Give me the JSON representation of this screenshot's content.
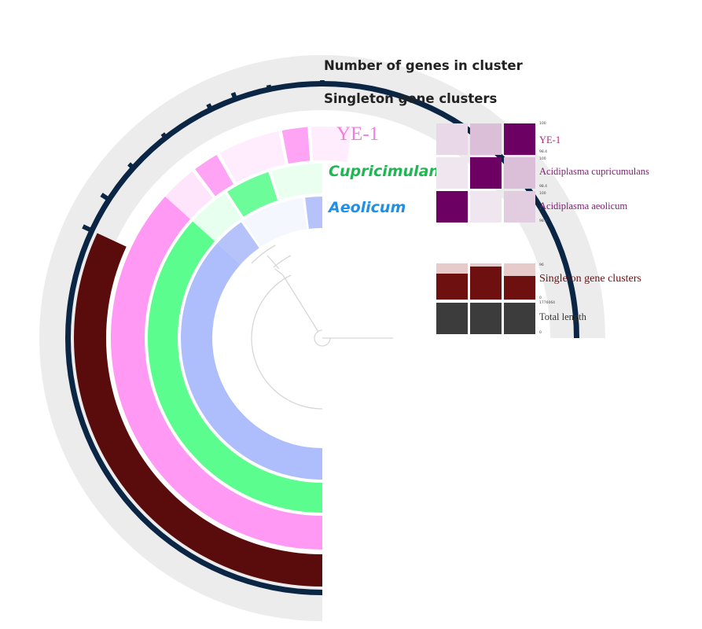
{
  "labels": {
    "num_genes": "Number of genes in cluster",
    "singleton_clusters": "Singleton gene clusters",
    "ye1": "YE-1",
    "cupricimulans": "Cupricimulans",
    "aeolicum": "Aeolicum"
  },
  "right_panel": {
    "ani_labels": [
      "YE-1",
      "Acidiplasma cupricumulans",
      "Acidiplasma aeolicum"
    ],
    "singleton_label": "Singleton gene clusters",
    "total_length_label": "Total length",
    "tiny": {
      "r1_top": "100",
      "r1_bot": "98.4",
      "r2_top": "100",
      "r2_bot": "98.4",
      "r3_top": "100",
      "r3_bot": "98.4",
      "sg_top": "96",
      "sg_bot": "0",
      "tl_top": "1776064",
      "tl_bot": "0"
    },
    "heatmap": [
      [
        0.15,
        0.25,
        1.0
      ],
      [
        0.1,
        1.0,
        0.25
      ],
      [
        1.0,
        0.1,
        0.2
      ]
    ],
    "singleton_bars": [
      0.72,
      0.92,
      0.66
    ],
    "total_length_bars": [
      1.0,
      1.0,
      1.0
    ]
  },
  "colors": {
    "num_genes_ring": "#0b2545",
    "singleton_ring": "#5a0c0c",
    "ye1": "#ff99f3",
    "cupricimulans": "#5cfd8f",
    "aeolicum": "#aebdfb",
    "ring_bg": "#ececec",
    "ye1_label": "#f47cdb",
    "cupri_label": "#1fb653",
    "aeol_label": "#1e90e6",
    "ani_dark": "#6d0063",
    "singleton_bar": "#6e1010",
    "singleton_bar_light": "#e7caca",
    "total_length_bar": "#3c3c3c",
    "right_label_purple": "#7a1f6f",
    "right_label_maroon": "#6b1010"
  }
}
